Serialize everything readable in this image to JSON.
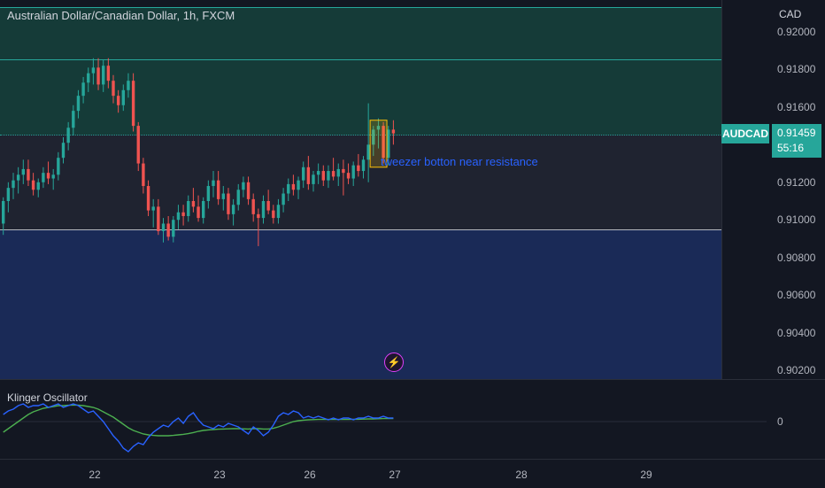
{
  "header": {
    "symbol_title": "Australian Dollar/Canadian Dollar, 1h, FXCM"
  },
  "price_axis": {
    "currency": "CAD",
    "ticks": [
      "0.92000",
      "0.91800",
      "0.91600",
      "0.91200",
      "0.91000",
      "0.90800",
      "0.90600",
      "0.90400",
      "0.90200"
    ],
    "symbol_tag": "AUDCAD",
    "current_price": "0.91459",
    "countdown": "55:16"
  },
  "annotation": {
    "text": "tweezer botton near resistance"
  },
  "lightning_icon": "lightning-icon",
  "oscillator": {
    "name": "Klinger Oscillator",
    "zero_label": "0"
  },
  "time_axis": {
    "dates": [
      "22",
      "23",
      "26",
      "27",
      "28",
      "29"
    ]
  },
  "colors": {
    "background": "#131722",
    "up_candle": "#26a69a",
    "down_candle": "#ef5350",
    "resistance_zone": "#153b38",
    "range_zone": "#1f2330",
    "support_zone": "#1a2a57",
    "klinger_line": "#2962ff",
    "signal_line": "#4caf50",
    "annotation": "#2962ff"
  },
  "chart_data": {
    "type": "candlestick",
    "title": "Australian Dollar/Canadian Dollar, 1h, FXCM",
    "y_unit": "CAD",
    "ylim": [
      0.9017,
      0.9217
    ],
    "x_labels": [
      "22",
      "23",
      "26",
      "27",
      "28",
      "29"
    ],
    "current_price": 0.91459,
    "zones": [
      {
        "name": "resistance",
        "from": 0.91505,
        "to": 0.9212
      },
      {
        "name": "range",
        "from": 0.90948,
        "to": 0.91505
      },
      {
        "name": "support",
        "from": 0.9017,
        "to": 0.90948
      }
    ],
    "candles": [
      [
        0.9098,
        0.9112,
        0.9092,
        0.911
      ],
      [
        0.911,
        0.912,
        0.9104,
        0.9117
      ],
      [
        0.9117,
        0.9125,
        0.9111,
        0.9121
      ],
      [
        0.9121,
        0.9128,
        0.9114,
        0.9124
      ],
      [
        0.9124,
        0.9132,
        0.9119,
        0.9127
      ],
      [
        0.9127,
        0.9132,
        0.9118,
        0.9121
      ],
      [
        0.9121,
        0.9125,
        0.9113,
        0.9116
      ],
      [
        0.9116,
        0.9122,
        0.9112,
        0.912
      ],
      [
        0.912,
        0.9128,
        0.9117,
        0.9125
      ],
      [
        0.9125,
        0.9131,
        0.9119,
        0.9122
      ],
      [
        0.9122,
        0.9127,
        0.9116,
        0.9124
      ],
      [
        0.9124,
        0.9136,
        0.9121,
        0.9133
      ],
      [
        0.9133,
        0.9144,
        0.913,
        0.9141
      ],
      [
        0.9141,
        0.9152,
        0.9137,
        0.9149
      ],
      [
        0.9149,
        0.9161,
        0.9145,
        0.9158
      ],
      [
        0.9158,
        0.9169,
        0.9154,
        0.9166
      ],
      [
        0.9166,
        0.9176,
        0.9162,
        0.9173
      ],
      [
        0.9173,
        0.9181,
        0.9168,
        0.9178
      ],
      [
        0.9178,
        0.9186,
        0.9172,
        0.9181
      ],
      [
        0.9181,
        0.9186,
        0.9169,
        0.9172
      ],
      [
        0.9172,
        0.9185,
        0.9168,
        0.9182
      ],
      [
        0.9182,
        0.9186,
        0.917,
        0.9174
      ],
      [
        0.9174,
        0.9177,
        0.9162,
        0.9166
      ],
      [
        0.9166,
        0.9169,
        0.9157,
        0.9161
      ],
      [
        0.9161,
        0.9172,
        0.9158,
        0.9169
      ],
      [
        0.9169,
        0.9178,
        0.9165,
        0.9174
      ],
      [
        0.9174,
        0.9178,
        0.9147,
        0.915
      ],
      [
        0.915,
        0.9152,
        0.9126,
        0.913
      ],
      [
        0.913,
        0.9133,
        0.9114,
        0.9118
      ],
      [
        0.9118,
        0.9121,
        0.9102,
        0.9105
      ],
      [
        0.9105,
        0.9111,
        0.9096,
        0.9107
      ],
      [
        0.9107,
        0.9111,
        0.9092,
        0.9094
      ],
      [
        0.9094,
        0.9101,
        0.9088,
        0.9098
      ],
      [
        0.9098,
        0.9102,
        0.9089,
        0.9091
      ],
      [
        0.9091,
        0.9102,
        0.9088,
        0.91
      ],
      [
        0.91,
        0.9108,
        0.9095,
        0.9104
      ],
      [
        0.9104,
        0.9108,
        0.9097,
        0.9102
      ],
      [
        0.9102,
        0.9113,
        0.9099,
        0.911
      ],
      [
        0.911,
        0.9117,
        0.9104,
        0.9107
      ],
      [
        0.9107,
        0.9113,
        0.9099,
        0.9101
      ],
      [
        0.9101,
        0.9112,
        0.9098,
        0.911
      ],
      [
        0.911,
        0.9121,
        0.9106,
        0.9118
      ],
      [
        0.9118,
        0.9126,
        0.9112,
        0.9121
      ],
      [
        0.9121,
        0.9126,
        0.9108,
        0.9111
      ],
      [
        0.9111,
        0.9118,
        0.9105,
        0.9114
      ],
      [
        0.9114,
        0.9117,
        0.91,
        0.9103
      ],
      [
        0.9103,
        0.9111,
        0.9097,
        0.9108
      ],
      [
        0.9108,
        0.9119,
        0.9105,
        0.9116
      ],
      [
        0.9116,
        0.9123,
        0.9112,
        0.912
      ],
      [
        0.912,
        0.9123,
        0.9108,
        0.9111
      ],
      [
        0.9111,
        0.9114,
        0.9099,
        0.9103
      ],
      [
        0.9103,
        0.9106,
        0.9086,
        0.9101
      ],
      [
        0.9101,
        0.9113,
        0.9098,
        0.911
      ],
      [
        0.911,
        0.9116,
        0.9103,
        0.9105
      ],
      [
        0.9105,
        0.9108,
        0.9098,
        0.9101
      ],
      [
        0.9101,
        0.9111,
        0.9098,
        0.9108
      ],
      [
        0.9108,
        0.9117,
        0.9104,
        0.9114
      ],
      [
        0.9114,
        0.9122,
        0.911,
        0.9119
      ],
      [
        0.9119,
        0.9124,
        0.9113,
        0.9116
      ],
      [
        0.9116,
        0.9123,
        0.9111,
        0.9121
      ],
      [
        0.9121,
        0.9131,
        0.9117,
        0.9128
      ],
      [
        0.9128,
        0.9134,
        0.9116,
        0.9119
      ],
      [
        0.9119,
        0.9126,
        0.9115,
        0.9124
      ],
      [
        0.9124,
        0.913,
        0.9119,
        0.9126
      ],
      [
        0.9126,
        0.9129,
        0.9118,
        0.9121
      ],
      [
        0.9121,
        0.9129,
        0.9117,
        0.9126
      ],
      [
        0.9126,
        0.9133,
        0.9121,
        0.9123
      ],
      [
        0.9123,
        0.913,
        0.9118,
        0.9127
      ],
      [
        0.9127,
        0.9132,
        0.9113,
        0.9125
      ],
      [
        0.9125,
        0.913,
        0.9119,
        0.9122
      ],
      [
        0.9122,
        0.9131,
        0.9118,
        0.9129
      ],
      [
        0.9129,
        0.9135,
        0.9123,
        0.9126
      ],
      [
        0.9126,
        0.9134,
        0.9122,
        0.9132
      ],
      [
        0.9132,
        0.9162,
        0.912,
        0.914
      ],
      [
        0.914,
        0.915,
        0.9134,
        0.9148
      ],
      [
        0.9148,
        0.9154,
        0.9138,
        0.915
      ],
      [
        0.915,
        0.9152,
        0.913,
        0.9133
      ],
      [
        0.9133,
        0.915,
        0.9129,
        0.9148
      ],
      [
        0.9148,
        0.9153,
        0.914,
        0.9146
      ]
    ],
    "oscillator": {
      "name": "Klinger Oscillator",
      "zero_line": 0,
      "klinger": [
        0.4,
        0.6,
        0.7,
        0.9,
        1.0,
        0.8,
        0.9,
        0.9,
        1.0,
        0.8,
        0.9,
        1.0,
        0.8,
        0.9,
        1.0,
        0.9,
        0.7,
        0.5,
        0.6,
        0.3,
        0.0,
        -0.4,
        -0.8,
        -1.1,
        -1.5,
        -1.7,
        -1.4,
        -1.2,
        -1.3,
        -0.9,
        -0.6,
        -0.4,
        -0.2,
        -0.3,
        0.0,
        0.2,
        -0.1,
        0.3,
        0.5,
        0.1,
        -0.2,
        -0.3,
        -0.4,
        -0.2,
        -0.3,
        -0.1,
        -0.2,
        -0.3,
        -0.5,
        -0.7,
        -0.3,
        -0.5,
        -0.8,
        -0.6,
        -0.2,
        0.3,
        0.5,
        0.4,
        0.6,
        0.5,
        0.2,
        0.3,
        0.2,
        0.3,
        0.2,
        0.1,
        0.2,
        0.1,
        0.2,
        0.2,
        0.1,
        0.2,
        0.2,
        0.3,
        0.2,
        0.2,
        0.3,
        0.2,
        0.2
      ],
      "signal": [
        -0.6,
        -0.4,
        -0.2,
        0.0,
        0.2,
        0.4,
        0.55,
        0.65,
        0.75,
        0.8,
        0.85,
        0.9,
        0.9,
        0.92,
        0.93,
        0.93,
        0.9,
        0.85,
        0.8,
        0.7,
        0.55,
        0.4,
        0.25,
        0.05,
        -0.15,
        -0.35,
        -0.5,
        -0.6,
        -0.7,
        -0.75,
        -0.78,
        -0.8,
        -0.8,
        -0.8,
        -0.78,
        -0.75,
        -0.72,
        -0.68,
        -0.62,
        -0.55,
        -0.5,
        -0.47,
        -0.45,
        -0.43,
        -0.42,
        -0.41,
        -0.4,
        -0.4,
        -0.41,
        -0.42,
        -0.4,
        -0.4,
        -0.42,
        -0.42,
        -0.38,
        -0.3,
        -0.2,
        -0.1,
        0.0,
        0.05,
        0.08,
        0.1,
        0.11,
        0.12,
        0.12,
        0.12,
        0.12,
        0.12,
        0.12,
        0.12,
        0.13,
        0.13,
        0.14,
        0.15,
        0.15,
        0.16,
        0.17,
        0.17,
        0.17
      ]
    }
  }
}
